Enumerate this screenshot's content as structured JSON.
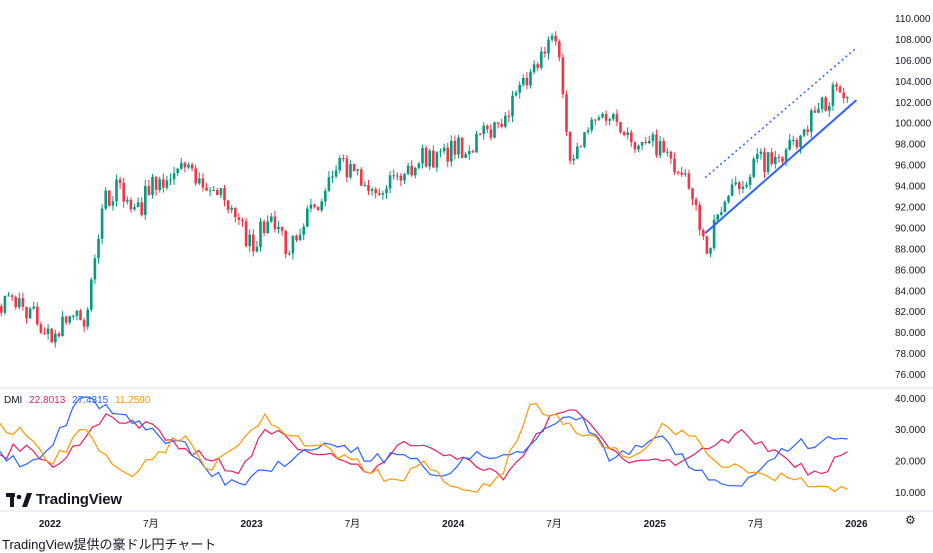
{
  "caption": "TradingView提供の豪ドル円チャート",
  "logo": {
    "text": "TradingView",
    "icon": "tradingview-logo-icon"
  },
  "settings_icon": "gear-icon",
  "indicator": {
    "name": "DMI",
    "plus_di": "22.8013",
    "minus_di": "27.4315",
    "adx": "11.2590",
    "colors": {
      "plus_di": "#e91e63",
      "minus_di": "#2962ff",
      "adx": "#ff9800"
    }
  },
  "chart_data": {
    "type": "candlestick",
    "colors": {
      "up": "#089981",
      "down": "#f23645",
      "trendline": "#2962ff"
    },
    "price_axis": {
      "ticks": [
        "110.000",
        "108.000",
        "106.000",
        "104.000",
        "102.000",
        "100.000",
        "98.000",
        "96.000",
        "94.000",
        "92.000",
        "90.000",
        "88.000",
        "86.000",
        "84.000",
        "82.000",
        "80.000",
        "78.000",
        "76.000"
      ],
      "range": [
        75,
        111
      ]
    },
    "indicator_axis": {
      "ticks": [
        "40.000",
        "30.000",
        "20.000",
        "10.000"
      ],
      "range": [
        5,
        42
      ]
    },
    "time_axis": {
      "labels": [
        "2022",
        "7月",
        "2023",
        "7月",
        "2024",
        "7月",
        "2025",
        "7月",
        "2026"
      ],
      "bold": [
        true,
        false,
        true,
        false,
        true,
        false,
        true,
        false,
        true
      ]
    },
    "price_anchors": [
      [
        "2021-11",
        83.0
      ],
      [
        "2021-12",
        81.5
      ],
      [
        "2022-01",
        79.5
      ],
      [
        "2022-02",
        82.0
      ],
      [
        "2022-03",
        80.5
      ],
      [
        "2022-04",
        92.0
      ],
      [
        "2022-05",
        94.0
      ],
      [
        "2022-06",
        91.0
      ],
      [
        "2022-07",
        94.5
      ],
      [
        "2022-08",
        93.5
      ],
      [
        "2022-09",
        96.5
      ],
      [
        "2022-10",
        93.0
      ],
      [
        "2022-11",
        94.0
      ],
      [
        "2022-12",
        90.5
      ],
      [
        "2023-01",
        88.5
      ],
      [
        "2023-02",
        91.0
      ],
      [
        "2023-03",
        88.0
      ],
      [
        "2023-04",
        91.0
      ],
      [
        "2023-05",
        92.0
      ],
      [
        "2023-06",
        96.0
      ],
      [
        "2023-07",
        95.0
      ],
      [
        "2023-08",
        94.0
      ],
      [
        "2023-09",
        94.5
      ],
      [
        "2023-10",
        95.0
      ],
      [
        "2023-11",
        97.0
      ],
      [
        "2023-12",
        96.5
      ],
      [
        "2024-01",
        97.5
      ],
      [
        "2024-02",
        98.0
      ],
      [
        "2024-03",
        99.0
      ],
      [
        "2024-04",
        101.0
      ],
      [
        "2024-05",
        103.0
      ],
      [
        "2024-06",
        105.5
      ],
      [
        "2024-07",
        108.5
      ],
      [
        "2024-08",
        96.0
      ],
      [
        "2024-09",
        99.5
      ],
      [
        "2024-10",
        101.0
      ],
      [
        "2024-11",
        100.0
      ],
      [
        "2024-12",
        97.5
      ],
      [
        "2025-01",
        98.0
      ],
      [
        "2025-02",
        96.0
      ],
      [
        "2025-03",
        93.5
      ],
      [
        "2025-04",
        88.0
      ],
      [
        "2025-05",
        92.5
      ],
      [
        "2025-06",
        94.0
      ],
      [
        "2025-07",
        96.5
      ],
      [
        "2025-08",
        96.0
      ],
      [
        "2025-09",
        97.5
      ],
      [
        "2025-10",
        100.0
      ],
      [
        "2025-11",
        102.0
      ],
      [
        "2025-12",
        103.5
      ]
    ],
    "dmi_anchors": {
      "plus_di": [
        22,
        25,
        18,
        25,
        35,
        33,
        30,
        24,
        20,
        16,
        30,
        26,
        22,
        20,
        16,
        25,
        25,
        22,
        18,
        14,
        25,
        35,
        34,
        24,
        20,
        20,
        21,
        25,
        30,
        23,
        18,
        16,
        23
      ],
      "minus_di": [
        23,
        19,
        25,
        40,
        38,
        32,
        28,
        26,
        15,
        13,
        17,
        20,
        24,
        25,
        20,
        22,
        18,
        16,
        23,
        22,
        25,
        32,
        34,
        20,
        25,
        28,
        18,
        14,
        12,
        20,
        25,
        26,
        27
      ],
      "adx": [
        32,
        28,
        19,
        30,
        22,
        15,
        23,
        28,
        17,
        25,
        35,
        28,
        25,
        22,
        16,
        14,
        20,
        12,
        10,
        16,
        38,
        35,
        28,
        24,
        22,
        32,
        28,
        20,
        18,
        15,
        14,
        12,
        11
      ]
    },
    "trendlines": [
      {
        "from": [
          "2025-04",
          89.5
        ],
        "to": [
          "2026-01",
          102.2
        ],
        "style": "solid"
      },
      {
        "from": [
          "2025-04",
          94.8
        ],
        "to": [
          "2026-01",
          107.2
        ],
        "style": "dotted"
      }
    ]
  }
}
